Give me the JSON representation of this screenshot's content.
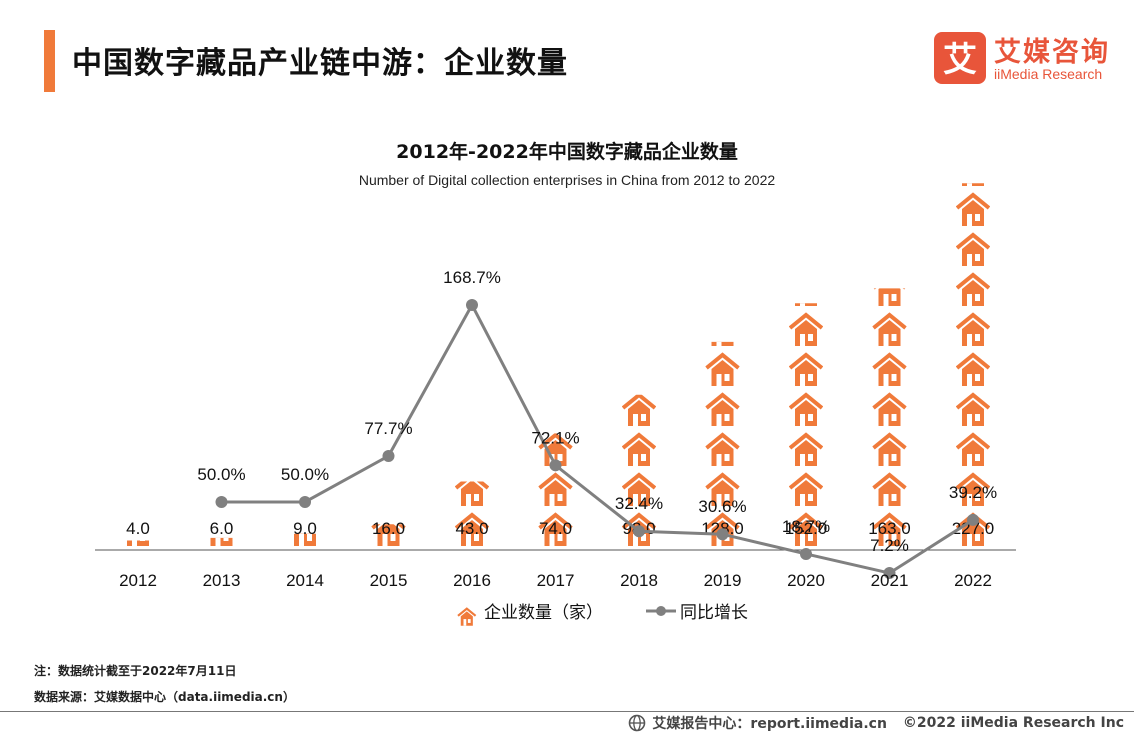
{
  "header": {
    "title": "中国数字藏品产业链中游：企业数量",
    "logo_cn": "艾媒咨询",
    "logo_en": "iiMedia Research",
    "logo_glyph": "艾",
    "accent_color": "#f07a3a",
    "brand_color": "#e8553a"
  },
  "chart_data": {
    "type": "bar",
    "title": "2012年-2022年中国数字藏品企业数量",
    "subtitle": "Number of Digital collection enterprises in China from 2012 to 2022",
    "categories": [
      "2012",
      "2013",
      "2014",
      "2015",
      "2016",
      "2017",
      "2018",
      "2019",
      "2020",
      "2021",
      "2022"
    ],
    "series": [
      {
        "name": "企业数量（家）",
        "type": "pictogram-bar",
        "icon": "house-icon",
        "color": "#f07a3a",
        "values": [
          4.0,
          6.0,
          9.0,
          16.0,
          43.0,
          74.0,
          98.0,
          128.0,
          152.0,
          163.0,
          227.0
        ],
        "labels": [
          "4.0",
          "6.0",
          "9.0",
          "16.0",
          "43.0",
          "74.0",
          "98.0",
          "128.0",
          "152.0",
          "163.0",
          "227.0"
        ]
      },
      {
        "name": "同比增长",
        "type": "line",
        "color": "#808080",
        "values": [
          null,
          50.0,
          50.0,
          77.7,
          168.7,
          72.1,
          32.4,
          30.6,
          18.7,
          7.2,
          39.2
        ],
        "labels": [
          "",
          "50.0%",
          "50.0%",
          "77.7%",
          "168.7%",
          "72.1%",
          "32.4%",
          "30.6%",
          "18.7%",
          "7.2%",
          "39.2%"
        ]
      }
    ],
    "legend_position": "bottom",
    "grid": false
  },
  "notes": {
    "note": "注：数据统计截至于2022年7月11日",
    "source": "数据来源：艾媒数据中心（data.iimedia.cn）"
  },
  "footer": {
    "globe_icon": "globe-icon",
    "text1": "艾媒报告中心：report.iimedia.cn",
    "text2": "©2022  iiMedia Research  Inc"
  }
}
